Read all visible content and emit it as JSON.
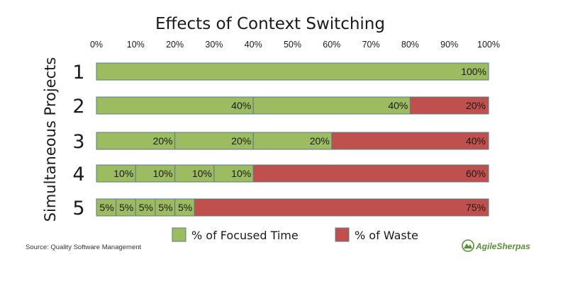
{
  "colors": {
    "focused": "#9dbb61",
    "waste": "#c0504d",
    "stroke": "#5d7a8a"
  },
  "chart_data": {
    "type": "bar",
    "orientation": "horizontal",
    "stacked": true,
    "title": "Effects of Context Switching",
    "ylabel": "Simultaneous Projects",
    "xlabel": "",
    "xlim": [
      0,
      100
    ],
    "x_ticks": [
      "0%",
      "10%",
      "20%",
      "30%",
      "40%",
      "50%",
      "60%",
      "70%",
      "80%",
      "90%",
      "100%"
    ],
    "categories": [
      "1",
      "2",
      "3",
      "4",
      "5"
    ],
    "bars": [
      {
        "category": "1",
        "focused_segments": [
          {
            "value": 100,
            "label": "100%"
          }
        ],
        "waste": {
          "value": 0,
          "label": ""
        }
      },
      {
        "category": "2",
        "focused_segments": [
          {
            "value": 40,
            "label": "40%"
          },
          {
            "value": 40,
            "label": "40%"
          }
        ],
        "waste": {
          "value": 20,
          "label": "20%"
        }
      },
      {
        "category": "3",
        "focused_segments": [
          {
            "value": 20,
            "label": "20%"
          },
          {
            "value": 20,
            "label": "20%"
          },
          {
            "value": 20,
            "label": "20%"
          }
        ],
        "waste": {
          "value": 40,
          "label": "40%"
        }
      },
      {
        "category": "4",
        "focused_segments": [
          {
            "value": 10,
            "label": "10%"
          },
          {
            "value": 10,
            "label": "10%"
          },
          {
            "value": 10,
            "label": "10%"
          },
          {
            "value": 10,
            "label": "10%"
          }
        ],
        "waste": {
          "value": 60,
          "label": "60%"
        }
      },
      {
        "category": "5",
        "focused_segments": [
          {
            "value": 5,
            "label": "5%"
          },
          {
            "value": 5,
            "label": "5%"
          },
          {
            "value": 5,
            "label": "5%"
          },
          {
            "value": 5,
            "label": "5%"
          },
          {
            "value": 5,
            "label": "5%"
          }
        ],
        "waste": {
          "value": 75,
          "label": "75%"
        }
      }
    ],
    "legend": [
      {
        "name": "% of Focused Time",
        "color": "#9dbb61"
      },
      {
        "name": "% of Waste",
        "color": "#c0504d"
      }
    ],
    "legend_position": "bottom",
    "grid": false
  },
  "source": "Source: Quality Software Management",
  "logo": {
    "text": "AgileSherpas",
    "icon": "mountain-logo-icon"
  }
}
